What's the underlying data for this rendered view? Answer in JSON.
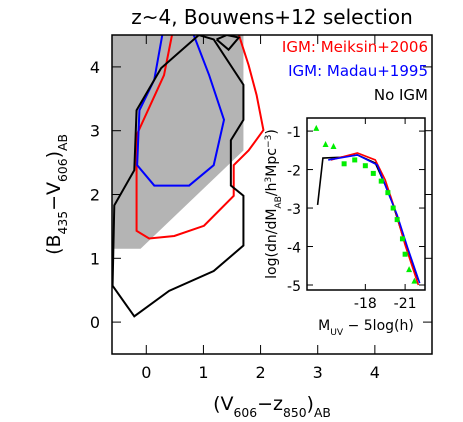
{
  "chart_data": [
    {
      "type": "contour",
      "title": "z~4, Bouwens+12 selection",
      "xlabel": [
        "(V",
        "606",
        "−z",
        "850",
        ")",
        "AB"
      ],
      "ylabel": [
        "(B",
        "435",
        "−V",
        "606",
        ")",
        "AB"
      ],
      "xlim": [
        -0.6,
        5.0
      ],
      "ylim": [
        -0.5,
        4.5
      ],
      "xticks": [
        0,
        1,
        2,
        3,
        4
      ],
      "yticks": [
        0,
        1,
        2,
        3,
        4
      ],
      "legend": "upper right",
      "series": [
        {
          "color": "#b4b4b4",
          "fill": true,
          "x": [
            -0.6,
            1.7,
            1.7,
            -0.1,
            -0.6
          ],
          "y": [
            4.5,
            4.5,
            2.69,
            1.15,
            1.15
          ]
        },
        {
          "name": "IGM: Meiksin+2006",
          "color": "#ff0000",
          "fill": false,
          "x": [
            0.45,
            0.31,
            -0.17,
            -0.17,
            0.05,
            0.49,
            1.01,
            1.53,
            1.53,
            1.79,
            2.05,
            1.93,
            1.79,
            1.62
          ],
          "y": [
            4.5,
            3.87,
            2.93,
            1.43,
            1.31,
            1.35,
            1.51,
            1.98,
            2.46,
            2.69,
            3.01,
            3.56,
            4.03,
            4.5
          ]
        },
        {
          "name": "IGM: Madau+1995",
          "color": "#0000ff",
          "fill": false,
          "x": [
            0.28,
            0.14,
            -0.12,
            -0.16,
            0.14,
            0.75,
            1.18,
            1.36,
            1.1,
            0.83
          ],
          "y": [
            4.5,
            3.8,
            3.32,
            2.46,
            2.14,
            2.14,
            2.46,
            3.17,
            3.87,
            4.5
          ]
        },
        {
          "name": "No IGM",
          "color": "#000000",
          "fill": false,
          "x": [
            0.92,
            0.26,
            -0.17,
            -0.21,
            -0.56,
            -0.59,
            -0.21,
            0.4,
            1.18,
            1.7,
            1.7,
            1.48,
            1.48,
            1.7,
            1.7,
            1.18,
            0.92
          ],
          "y": [
            4.5,
            3.98,
            3.32,
            2.38,
            1.83,
            0.57,
            0.09,
            0.49,
            0.8,
            1.2,
            1.98,
            2.14,
            2.85,
            3.17,
            3.72,
            4.43,
            4.5
          ]
        },
        {
          "color": "#000000",
          "fill": false,
          "x": [
            1.23,
            1.44,
            1.62,
            1.41,
            1.23
          ],
          "y": [
            4.43,
            4.27,
            4.46,
            4.5,
            4.43
          ]
        }
      ]
    },
    {
      "type": "line",
      "xlabel": [
        "M",
        "UV",
        " − 5log(h)"
      ],
      "ylabel": [
        "log(dn/dM",
        "AB",
        "/h",
        "3",
        "Mpc",
        "−3",
        ")"
      ],
      "xlim": [
        -13.6,
        -22.5
      ],
      "ylim": [
        -5.13,
        -0.66
      ],
      "xticks": [
        -18,
        -21
      ],
      "yticks": [
        -1,
        -2,
        -3,
        -4,
        -5
      ],
      "series": [
        {
          "color": "#000000",
          "x": [
            -14.4,
            -14.8,
            -16.1,
            -17.4,
            -18.75,
            -19.5,
            -20.1,
            -20.8,
            -21.4,
            -22.0
          ],
          "y": [
            -2.92,
            -1.7,
            -1.68,
            -1.62,
            -1.83,
            -2.4,
            -2.92,
            -3.7,
            -4.3,
            -4.87
          ]
        },
        {
          "color": "#ff0000",
          "x": [
            -15.4,
            -17.4,
            -18.75,
            -19.5,
            -20.25,
            -21.0,
            -22.0
          ],
          "y": [
            -1.75,
            -1.57,
            -1.75,
            -2.27,
            -3.05,
            -3.96,
            -5.0
          ]
        },
        {
          "color": "#0000ff",
          "x": [
            -15.2,
            -17.4,
            -18.9,
            -19.7,
            -20.4,
            -21.2,
            -22.1
          ],
          "y": [
            -1.75,
            -1.62,
            -1.88,
            -2.58,
            -3.18,
            -4.04,
            -4.95
          ]
        },
        {
          "color": "#00ee00",
          "marker": "triangle",
          "x": [
            -14.3,
            -15.0,
            -15.6,
            -21.3,
            -21.7
          ],
          "y": [
            -0.93,
            -1.35,
            -1.4,
            -4.6,
            -4.9
          ]
        },
        {
          "color": "#00ee00",
          "marker": "square",
          "x": [
            -16.4,
            -17.2,
            -18.0,
            -18.6,
            -19.2,
            -19.7,
            -20.1,
            -20.4,
            -20.8,
            -21.0
          ],
          "y": [
            -1.85,
            -1.75,
            -1.9,
            -2.1,
            -2.3,
            -2.6,
            -3.0,
            -3.3,
            -3.8,
            -4.2
          ]
        }
      ]
    }
  ]
}
